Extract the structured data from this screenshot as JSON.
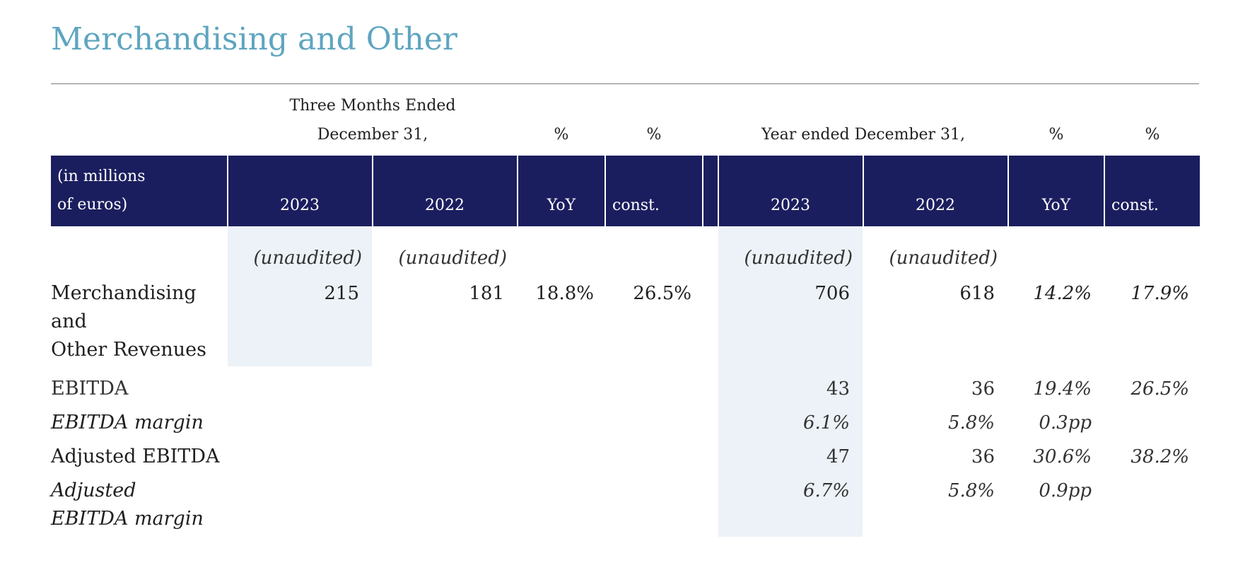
{
  "title": "Merchandising and Other",
  "header": {
    "three_months_l1": "Three Months Ended",
    "three_months_l2": "December 31,",
    "pct1": "%",
    "pct2": "%",
    "year_ended": "Year ended December 31,",
    "pct3": "%",
    "pct4": "%",
    "unit_l1": "(in millions",
    "unit_l2": "of euros)",
    "q_2023": "2023",
    "q_2022": "2022",
    "q_yoy": "YoY",
    "q_const": "const.",
    "y_2023": "2023",
    "y_2022": "2022",
    "y_yoy": "YoY",
    "y_const": "const."
  },
  "unaudited": {
    "q2023": "(unaudited)",
    "q2022": "(unaudited)",
    "y2023": "(unaudited)",
    "y2022": "(unaudited)"
  },
  "rows": [
    {
      "label_l1": "Merchandising",
      "label_l2": "and",
      "label_l3": "Other Revenues",
      "q2023": "215",
      "q2022": "181",
      "q_yoy": "18.8%",
      "q_const": "26.5%",
      "y2023": "706",
      "y2022": "618",
      "y_yoy": "14.2%",
      "y_const": "17.9%"
    },
    {
      "label_l1": "EBITDA",
      "y2023": "43",
      "y2022": "36",
      "y_yoy": "19.4%",
      "y_const": "26.5%"
    },
    {
      "label_l1": "EBITDA margin",
      "y2023": "6.1%",
      "y2022": "5.8%",
      "y_yoy": "0.3pp"
    },
    {
      "label_l1": "Adjusted EBITDA",
      "y2023": "47",
      "y2022": "36",
      "y_yoy": "30.6%",
      "y_const": "38.2%"
    },
    {
      "label_l1": "Adjusted",
      "label_l2": "EBITDA margin",
      "y2023": "6.7%",
      "y2022": "5.8%",
      "y_yoy": "0.9pp"
    }
  ]
}
